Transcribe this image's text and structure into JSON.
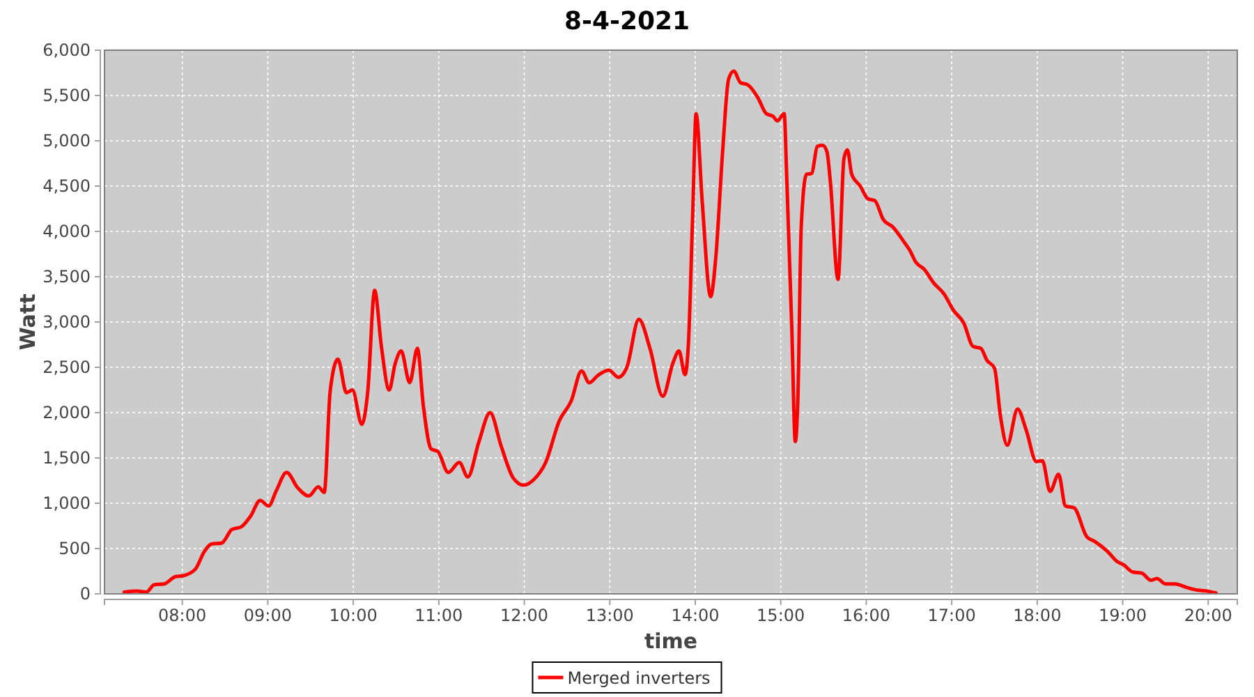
{
  "chart_data": {
    "type": "line",
    "title": "8-4-2021",
    "xlabel": "time",
    "ylabel": "Watt",
    "x": [
      7.32,
      7.47,
      7.58,
      7.67,
      7.79,
      7.92,
      8.01,
      8.15,
      8.26,
      8.34,
      8.46,
      8.58,
      8.69,
      8.8,
      8.91,
      9.01,
      9.1,
      9.22,
      9.35,
      9.48,
      9.59,
      9.66,
      9.73,
      9.82,
      9.92,
      9.99,
      10.1,
      10.17,
      10.25,
      10.33,
      10.42,
      10.49,
      10.56,
      10.66,
      10.75,
      10.82,
      10.91,
      10.99,
      11.11,
      11.24,
      11.34,
      11.47,
      11.6,
      11.73,
      11.87,
      11.99,
      12.11,
      12.25,
      12.41,
      12.55,
      12.67,
      12.76,
      12.86,
      12.99,
      13.1,
      13.2,
      13.34,
      13.47,
      13.62,
      13.74,
      13.81,
      13.88,
      13.92,
      13.97,
      14.01,
      14.08,
      14.18,
      14.24,
      14.32,
      14.39,
      14.45,
      14.53,
      14.61,
      14.73,
      14.83,
      14.91,
      14.96,
      15.04,
      15.07,
      15.13,
      15.17,
      15.2,
      15.24,
      15.3,
      15.36,
      15.43,
      15.49,
      15.54,
      15.58,
      15.67,
      15.74,
      15.78,
      15.83,
      15.93,
      16.02,
      16.1,
      16.2,
      16.31,
      16.43,
      16.51,
      16.58,
      16.68,
      16.79,
      16.91,
      17.02,
      17.14,
      17.25,
      17.34,
      17.41,
      17.5,
      17.57,
      17.65,
      17.77,
      17.87,
      17.99,
      18.06,
      18.15,
      18.25,
      18.33,
      18.43,
      18.58,
      18.67,
      18.82,
      18.93,
      19.01,
      19.12,
      19.22,
      19.33,
      19.4,
      19.5,
      19.61,
      19.75,
      19.88,
      19.99,
      20.09
    ],
    "series": [
      {
        "name": "Merged inverters",
        "color": "#ff0000",
        "values": [
          20,
          30,
          20,
          100,
          110,
          190,
          200,
          270,
          470,
          550,
          560,
          710,
          740,
          860,
          1030,
          970,
          1140,
          1340,
          1170,
          1080,
          1180,
          1120,
          2240,
          2590,
          2220,
          2250,
          1870,
          2240,
          3350,
          2720,
          2250,
          2540,
          2680,
          2330,
          2710,
          2070,
          1600,
          1570,
          1340,
          1450,
          1290,
          1680,
          2000,
          1630,
          1280,
          1200,
          1260,
          1450,
          1910,
          2130,
          2460,
          2330,
          2410,
          2470,
          2390,
          2500,
          3030,
          2710,
          2180,
          2550,
          2680,
          2420,
          2760,
          4190,
          5300,
          4350,
          3280,
          3710,
          4880,
          5680,
          5770,
          5640,
          5620,
          5480,
          5300,
          5270,
          5220,
          5300,
          4600,
          2910,
          1680,
          2140,
          4060,
          4630,
          4640,
          4940,
          4950,
          4880,
          4550,
          3470,
          4810,
          4900,
          4630,
          4500,
          4360,
          4340,
          4130,
          4050,
          3900,
          3790,
          3660,
          3580,
          3430,
          3310,
          3130,
          2990,
          2730,
          2710,
          2580,
          2490,
          1960,
          1640,
          2040,
          1810,
          1460,
          1470,
          1130,
          1320,
          970,
          950,
          630,
          580,
          470,
          360,
          320,
          240,
          230,
          150,
          170,
          110,
          110,
          70,
          40,
          30,
          10
        ]
      }
    ],
    "xlim": [
      7.09,
      20.34
    ],
    "ylim": [
      0,
      6000
    ],
    "xticks": [
      {
        "value": 8,
        "label": "08:00"
      },
      {
        "value": 9,
        "label": "09:00"
      },
      {
        "value": 10,
        "label": "10:00"
      },
      {
        "value": 11,
        "label": "11:00"
      },
      {
        "value": 12,
        "label": "12:00"
      },
      {
        "value": 13,
        "label": "13:00"
      },
      {
        "value": 14,
        "label": "14:00"
      },
      {
        "value": 15,
        "label": "15:00"
      },
      {
        "value": 16,
        "label": "16:00"
      },
      {
        "value": 17,
        "label": "17:00"
      },
      {
        "value": 18,
        "label": "18:00"
      },
      {
        "value": 19,
        "label": "19:00"
      },
      {
        "value": 20,
        "label": "20:00"
      }
    ],
    "yticks": [
      0,
      500,
      {
        "value": 1000,
        "label": "1,000"
      },
      {
        "value": 1500,
        "label": "1,500"
      },
      {
        "value": 2000,
        "label": "2,000"
      },
      {
        "value": 2500,
        "label": "2,500"
      },
      {
        "value": 3000,
        "label": "3,000"
      },
      {
        "value": 3500,
        "label": "3,500"
      },
      {
        "value": 4000,
        "label": "4,000"
      },
      {
        "value": 4500,
        "label": "4,500"
      },
      {
        "value": 5000,
        "label": "5,000"
      },
      {
        "value": 5500,
        "label": "5,500"
      },
      {
        "value": 6000,
        "label": "6,000"
      }
    ],
    "grid": true,
    "legend": "bottom"
  }
}
